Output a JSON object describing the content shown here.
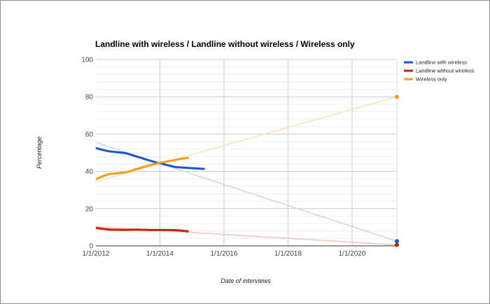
{
  "chart_data": {
    "type": "line",
    "title": "Landline with wireless / Landline without wireless / Wireless only",
    "xlabel": "Date of interviews",
    "ylabel": "Percentage",
    "x_ticks": [
      "1/1/2012",
      "1/1/2014",
      "1/1/2016",
      "1/1/2018",
      "1/1/2020"
    ],
    "y_ticks": [
      0,
      20,
      40,
      60,
      80,
      100
    ],
    "ylim": [
      0,
      100
    ],
    "xlim": [
      2012.0,
      2021.4
    ],
    "grid": true,
    "legend_position": "right",
    "series": [
      {
        "name": "Landline with wireless",
        "color": "#1a56c8",
        "trend_color": "#c8d6f0",
        "x": [
          2012.0,
          2012.4,
          2012.9,
          2013.3,
          2013.8,
          2014.2,
          2014.5,
          2014.9,
          2015.4
        ],
        "y": [
          52.5,
          50.8,
          49.8,
          47.8,
          45.2,
          43.5,
          42.3,
          41.8,
          41.3
        ],
        "trend": [
          [
            2012.0,
            55.5
          ],
          [
            2021.4,
            2.5
          ]
        ]
      },
      {
        "name": "Landline without wireless",
        "color": "#cc1f00",
        "trend_color": "#f1c4bb",
        "x": [
          2012.0,
          2012.4,
          2012.9,
          2013.3,
          2013.8,
          2014.2,
          2014.5,
          2014.9
        ],
        "y": [
          9.6,
          8.8,
          8.6,
          8.7,
          8.5,
          8.5,
          8.4,
          7.8
        ],
        "trend": [
          [
            2012.0,
            10.3
          ],
          [
            2021.4,
            0.5
          ]
        ]
      },
      {
        "name": "Wireless only",
        "color": "#f39c1f",
        "trend_color": "#fbe2bb",
        "x": [
          2012.0,
          2012.4,
          2012.9,
          2013.3,
          2013.8,
          2014.2,
          2014.5,
          2014.9
        ],
        "y": [
          35.8,
          38.4,
          39.4,
          41.4,
          43.8,
          45.2,
          46.2,
          47.3
        ],
        "trend": [
          [
            2012.0,
            34.5
          ],
          [
            2021.4,
            80.0
          ]
        ]
      }
    ]
  }
}
